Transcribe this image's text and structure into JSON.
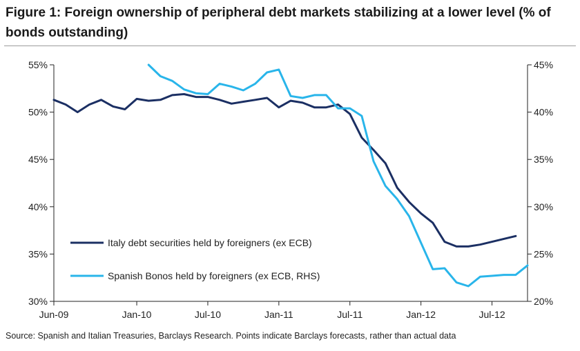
{
  "figure": {
    "title": "Figure 1: Foreign ownership of peripheral debt markets stabilizing at a lower level (% of bonds outstanding)",
    "source": "Source: Spanish and Italian Treasuries, Barclays Research. Points indicate Barclays forecasts, rather than actual data"
  },
  "chart_data": {
    "type": "line",
    "title": "Figure 1: Foreign ownership of peripheral debt markets stabilizing at a lower level (% of bonds outstanding)",
    "x_tick_labels": [
      "Jun-09",
      "Jan-10",
      "Jul-10",
      "Jan-11",
      "Jul-11",
      "Jan-12",
      "Jul-12"
    ],
    "x_ticks_month_index": [
      0,
      7,
      13,
      19,
      25,
      31,
      37
    ],
    "x_range_month_index": [
      0,
      40
    ],
    "y_left": {
      "ticks": [
        "30%",
        "35%",
        "40%",
        "45%",
        "50%",
        "55%"
      ],
      "range": [
        30,
        55
      ]
    },
    "y_right": {
      "ticks": [
        "20%",
        "25%",
        "30%",
        "35%",
        "40%",
        "45%"
      ],
      "range": [
        20,
        45
      ]
    },
    "legend_position": "lower-left",
    "grid": false,
    "series": [
      {
        "name": "Italy debt securities held by foreigners (ex ECB)",
        "axis": "left",
        "color": "#1b2f63",
        "x": [
          0,
          1,
          2,
          3,
          4,
          5,
          6,
          7,
          8,
          9,
          10,
          11,
          12,
          13,
          14,
          15,
          16,
          17,
          18,
          19,
          20,
          21,
          22,
          23,
          24,
          25,
          26,
          27,
          28,
          29,
          30,
          31,
          32,
          33,
          34,
          35,
          36,
          37,
          38,
          39
        ],
        "values": [
          51.3,
          50.8,
          50.0,
          50.8,
          51.3,
          50.6,
          50.3,
          51.4,
          51.2,
          51.3,
          51.8,
          51.9,
          51.6,
          51.6,
          51.3,
          50.9,
          51.1,
          51.3,
          51.5,
          50.5,
          51.2,
          51.0,
          50.5,
          50.5,
          50.8,
          49.8,
          47.3,
          46.0,
          44.6,
          42.0,
          40.5,
          39.3,
          38.3,
          36.3,
          35.8,
          35.8,
          36.0,
          36.3,
          36.6,
          36.9
        ]
      },
      {
        "name": "Spanish Bonos held by foreigners (ex ECB, RHS)",
        "axis": "right",
        "color": "#29b5ea",
        "x": [
          8,
          9,
          10,
          11,
          12,
          13,
          14,
          15,
          16,
          17,
          18,
          19,
          20,
          21,
          22,
          23,
          24,
          25,
          26,
          27,
          28,
          29,
          30,
          31,
          32,
          33,
          34,
          35,
          36,
          37,
          38,
          39,
          40
        ],
        "values": [
          45.0,
          43.8,
          43.3,
          42.4,
          42.0,
          41.9,
          43.0,
          42.7,
          42.3,
          43.0,
          44.2,
          44.5,
          41.7,
          41.5,
          41.8,
          41.8,
          40.4,
          40.4,
          39.6,
          34.8,
          32.2,
          30.8,
          29.0,
          26.2,
          23.4,
          23.5,
          22.0,
          21.6,
          22.6,
          22.7,
          22.8,
          22.8,
          23.8
        ]
      }
    ]
  }
}
